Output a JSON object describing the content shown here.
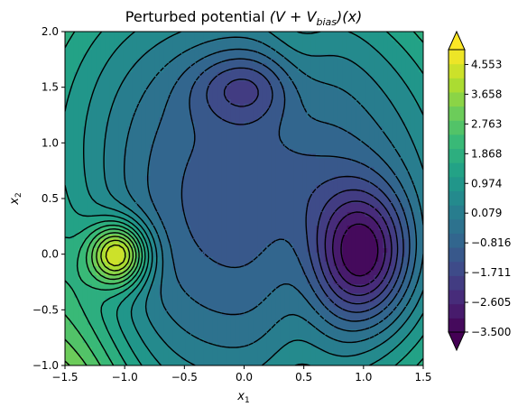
{
  "chart_data": {
    "type": "heatmap",
    "subtype": "filled-contour",
    "title_prefix": "Perturbed potential ",
    "title_math": "(V + V",
    "title_sub": "bias",
    "title_suffix": ")(x)",
    "xlabel_base": "x",
    "xlabel_sub": "1",
    "ylabel_base": "x",
    "ylabel_sub": "2",
    "xlim": [
      -1.5,
      1.5
    ],
    "ylim": [
      -1.0,
      2.0
    ],
    "xticks": [
      -1.5,
      -1.0,
      -0.5,
      0.0,
      0.5,
      1.0,
      1.5
    ],
    "xtick_labels": [
      "−1.5",
      "−1.0",
      "−0.5",
      "0.0",
      "0.5",
      "1.0",
      "1.5"
    ],
    "yticks": [
      -1.0,
      -0.5,
      0.0,
      0.5,
      1.0,
      1.5,
      2.0
    ],
    "ytick_labels": [
      "−1.0",
      "−0.5",
      "0.0",
      "0.5",
      "1.0",
      "1.5",
      "2.0"
    ],
    "colormap": "viridis",
    "colorbar_extend": "both",
    "colorbar_range": [
      -3.5,
      5.0
    ],
    "colorbar_ticks": [
      -3.5,
      -2.605,
      -1.711,
      -0.816,
      0.079,
      0.974,
      1.868,
      2.763,
      3.658,
      4.553
    ],
    "colorbar_tick_labels": [
      "−3.500",
      "−2.605",
      "−1.711",
      "−0.816",
      "0.079",
      "0.974",
      "1.868",
      "2.763",
      "3.658",
      "4.553"
    ],
    "levels": 20,
    "wells": [
      {
        "x": 1.0,
        "y": 0.0
      },
      {
        "x": 0.0,
        "y": 1.5
      }
    ],
    "bias_peak": {
      "x": -1.05,
      "y": 0.0
    }
  }
}
